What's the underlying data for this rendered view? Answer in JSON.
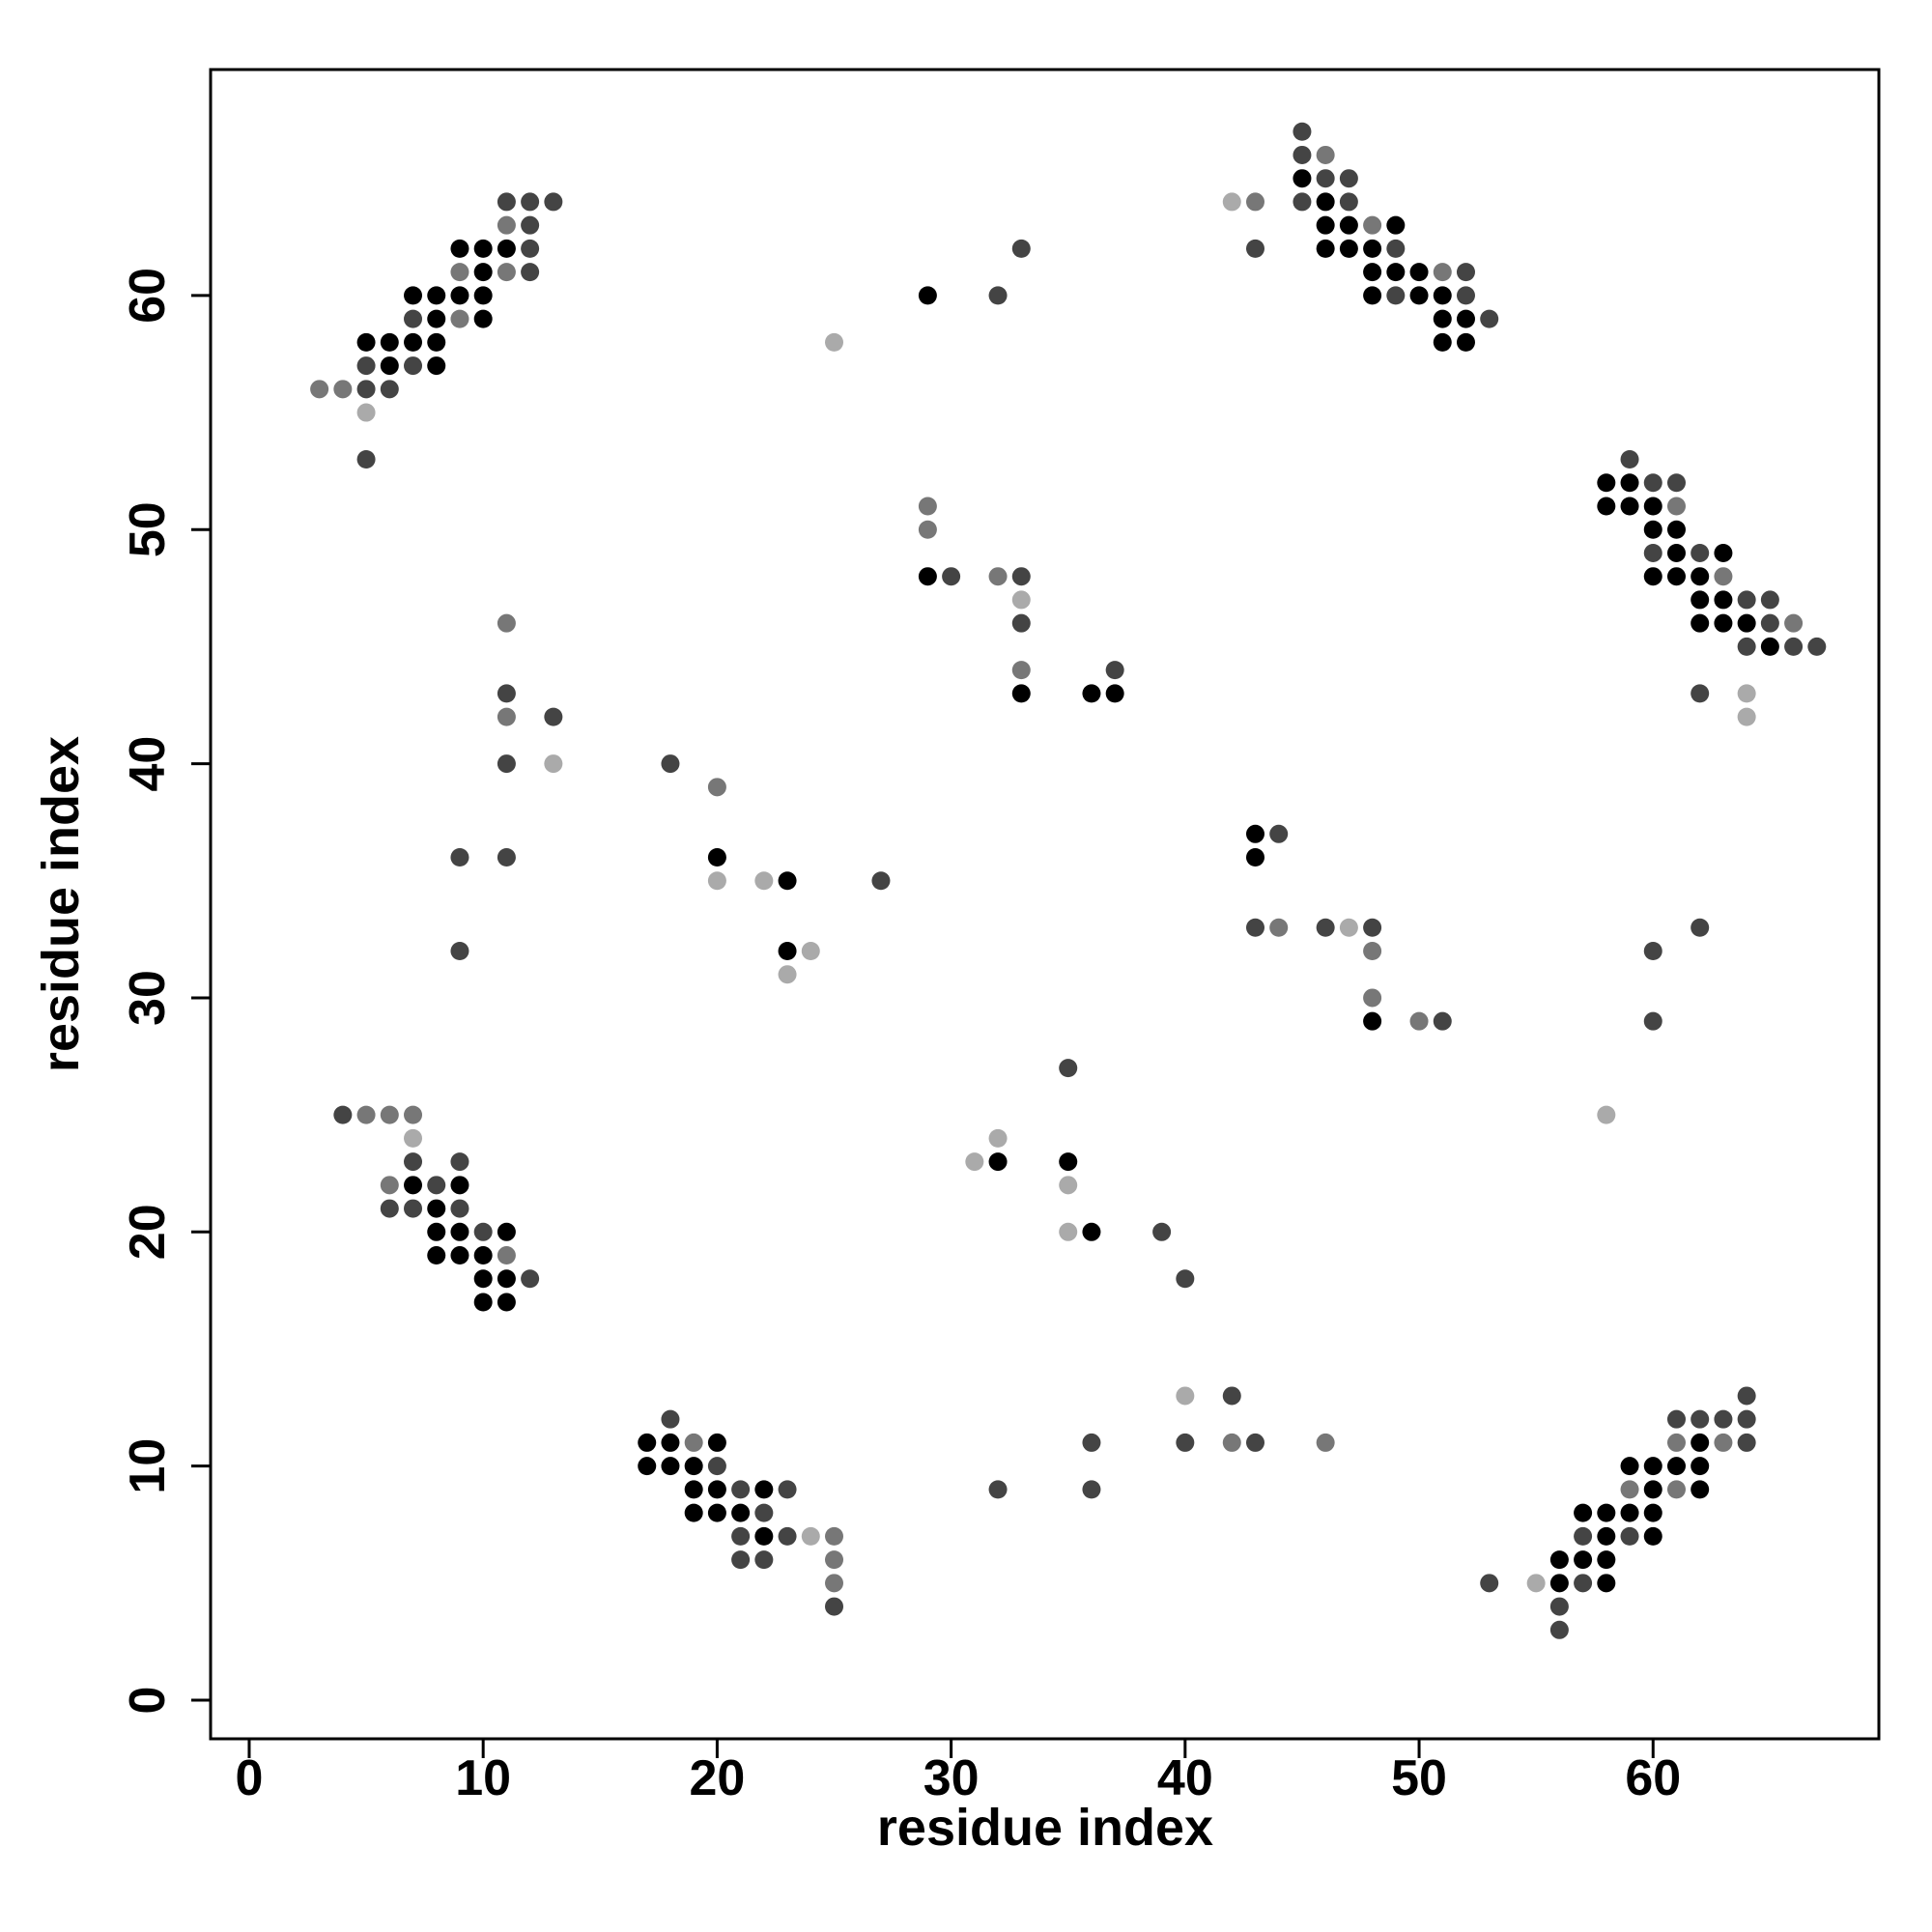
{
  "chart_data": {
    "type": "scatter",
    "xlabel": "residue index",
    "ylabel": "residue index",
    "xlim": [
      -1.65,
      69.65
    ],
    "ylim": [
      -1.65,
      69.65
    ],
    "xticks": [
      0,
      10,
      20,
      30,
      40,
      50,
      60
    ],
    "yticks": [
      0,
      10,
      20,
      30,
      40,
      50,
      60
    ],
    "series": [
      {
        "color": "#000000",
        "x": [
          9,
          10,
          11,
          10,
          7,
          8,
          9,
          10,
          8,
          10,
          5,
          6,
          7,
          8,
          6,
          8,
          29,
          29,
          33,
          36,
          37,
          45,
          46,
          46,
          47,
          49,
          46,
          47,
          48,
          48,
          49,
          50,
          48,
          50,
          51,
          51,
          52,
          51,
          52,
          58,
          59,
          58,
          59,
          60,
          60,
          61,
          61,
          63,
          60,
          61,
          62,
          62,
          63,
          62,
          63,
          64,
          65,
          20,
          23,
          23,
          43,
          43,
          48,
          7,
          9,
          8,
          8,
          9,
          11,
          8,
          9,
          10,
          10,
          11,
          10,
          11,
          32,
          35,
          36,
          17,
          18,
          20,
          17,
          18,
          19,
          19,
          20,
          22,
          19,
          20,
          21,
          22,
          62,
          59,
          60,
          61,
          62,
          60,
          62,
          57,
          58,
          59,
          60,
          58,
          60,
          56,
          57,
          58,
          56,
          58
        ],
        "values": [
          62,
          62,
          62,
          61,
          60,
          60,
          60,
          60,
          59,
          59,
          58,
          58,
          58,
          58,
          57,
          57,
          60,
          48,
          43,
          43,
          43,
          65,
          64,
          63,
          63,
          63,
          62,
          62,
          62,
          61,
          61,
          61,
          60,
          60,
          60,
          59,
          59,
          58,
          58,
          52,
          52,
          51,
          51,
          51,
          50,
          50,
          49,
          49,
          48,
          48,
          48,
          47,
          47,
          46,
          46,
          46,
          45,
          36,
          35,
          32,
          37,
          36,
          29,
          22,
          22,
          21,
          20,
          20,
          20,
          19,
          19,
          19,
          18,
          18,
          17,
          17,
          23,
          23,
          20,
          11,
          11,
          11,
          10,
          10,
          10,
          9,
          9,
          9,
          8,
          8,
          8,
          7,
          11,
          10,
          10,
          10,
          10,
          9,
          9,
          8,
          8,
          8,
          8,
          7,
          7,
          6,
          6,
          6,
          5,
          5
        ]
      },
      {
        "color": "#444444",
        "x": [
          11,
          12,
          13,
          12,
          12,
          12,
          7,
          5,
          7,
          5,
          6,
          5,
          32,
          33,
          30,
          33,
          33,
          37,
          45,
          45,
          46,
          47,
          45,
          47,
          43,
          49,
          52,
          49,
          52,
          53,
          59,
          60,
          61,
          60,
          62,
          64,
          65,
          65,
          64,
          66,
          67,
          62,
          11,
          13,
          11,
          9,
          11,
          9,
          18,
          27,
          44,
          43,
          46,
          48,
          51,
          62,
          60,
          60,
          4,
          7,
          9,
          8,
          6,
          7,
          9,
          10,
          12,
          35,
          39,
          40,
          42,
          40,
          43,
          36,
          36,
          32,
          18,
          20,
          21,
          23,
          22,
          21,
          23,
          21,
          22,
          25,
          64,
          61,
          62,
          63,
          64,
          64,
          57,
          59,
          53,
          57,
          56,
          56
        ],
        "values": [
          64,
          64,
          64,
          63,
          62,
          61,
          59,
          57,
          57,
          56,
          56,
          53,
          60,
          62,
          48,
          48,
          46,
          44,
          67,
          66,
          65,
          65,
          64,
          64,
          62,
          62,
          61,
          60,
          60,
          59,
          53,
          52,
          52,
          49,
          49,
          47,
          47,
          46,
          45,
          45,
          45,
          43,
          43,
          42,
          40,
          36,
          36,
          32,
          40,
          35,
          37,
          33,
          33,
          33,
          29,
          33,
          32,
          29,
          25,
          23,
          23,
          22,
          21,
          21,
          21,
          20,
          18,
          27,
          20,
          18,
          13,
          11,
          11,
          11,
          9,
          9,
          12,
          10,
          9,
          9,
          8,
          7,
          7,
          6,
          6,
          4,
          13,
          12,
          12,
          12,
          12,
          11,
          7,
          7,
          5,
          5,
          4,
          3
        ]
      },
      {
        "color": "#777777",
        "x": [
          11,
          9,
          11,
          9,
          3,
          4,
          29,
          29,
          32,
          33,
          46,
          43,
          48,
          51,
          61,
          63,
          66,
          11,
          11,
          20,
          44,
          48,
          48,
          50,
          5,
          6,
          7,
          6,
          11,
          42,
          46,
          19,
          25,
          25,
          25,
          61,
          63,
          59,
          61
        ],
        "values": [
          63,
          61,
          61,
          59,
          56,
          56,
          51,
          50,
          48,
          44,
          66,
          64,
          63,
          61,
          51,
          48,
          46,
          46,
          42,
          39,
          33,
          32,
          30,
          29,
          25,
          25,
          25,
          22,
          19,
          11,
          11,
          11,
          7,
          6,
          5,
          11,
          11,
          9,
          9
        ]
      },
      {
        "color": "#aaaaaa",
        "x": [
          5,
          25,
          33,
          42,
          64,
          64,
          13,
          20,
          22,
          24,
          23,
          47,
          58,
          7,
          32,
          31,
          35,
          35,
          40,
          24,
          55
        ],
        "values": [
          55,
          58,
          47,
          64,
          43,
          42,
          40,
          35,
          35,
          32,
          31,
          33,
          25,
          24,
          24,
          23,
          22,
          20,
          13,
          7,
          5
        ]
      }
    ]
  }
}
